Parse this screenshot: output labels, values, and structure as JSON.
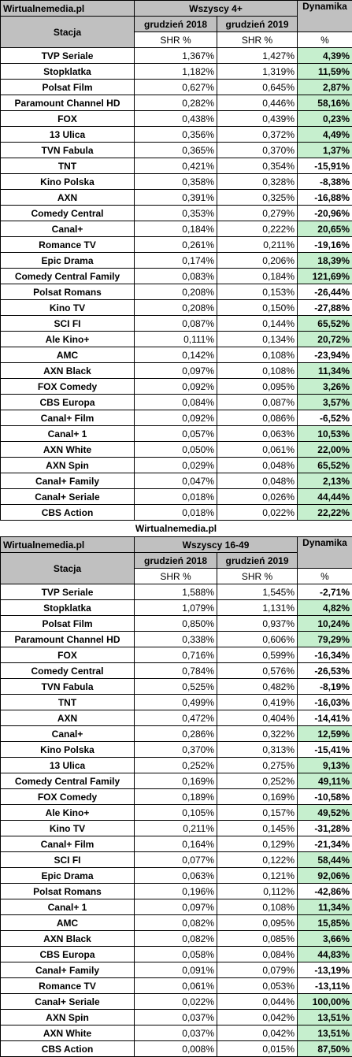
{
  "table1": {
    "source": "Wirtualnemedia.pl",
    "group": "Wszyscy 4+",
    "station_header": "Stacja",
    "month1": "grudzień 2018",
    "month2": "grudzień 2019",
    "dynamic_header": "Dynamika",
    "unit_shr": "SHR %",
    "unit_pct": "%",
    "rows": [
      {
        "station": "TVP Seriale",
        "v2018": "1,367%",
        "v2019": "1,427%",
        "dyn": "4,39%"
      },
      {
        "station": "Stopklatka",
        "v2018": "1,182%",
        "v2019": "1,319%",
        "dyn": "11,59%"
      },
      {
        "station": "Polsat Film",
        "v2018": "0,627%",
        "v2019": "0,645%",
        "dyn": "2,87%"
      },
      {
        "station": "Paramount Channel HD",
        "v2018": "0,282%",
        "v2019": "0,446%",
        "dyn": "58,16%"
      },
      {
        "station": "FOX",
        "v2018": "0,438%",
        "v2019": "0,439%",
        "dyn": "0,23%"
      },
      {
        "station": "13 Ulica",
        "v2018": "0,356%",
        "v2019": "0,372%",
        "dyn": "4,49%"
      },
      {
        "station": "TVN Fabula",
        "v2018": "0,365%",
        "v2019": "0,370%",
        "dyn": "1,37%"
      },
      {
        "station": "TNT",
        "v2018": "0,421%",
        "v2019": "0,354%",
        "dyn": "-15,91%"
      },
      {
        "station": "Kino Polska",
        "v2018": "0,358%",
        "v2019": "0,328%",
        "dyn": "-8,38%"
      },
      {
        "station": "AXN",
        "v2018": "0,391%",
        "v2019": "0,325%",
        "dyn": "-16,88%"
      },
      {
        "station": "Comedy Central",
        "v2018": "0,353%",
        "v2019": "0,279%",
        "dyn": "-20,96%"
      },
      {
        "station": "Canal+",
        "v2018": "0,184%",
        "v2019": "0,222%",
        "dyn": "20,65%"
      },
      {
        "station": "Romance TV",
        "v2018": "0,261%",
        "v2019": "0,211%",
        "dyn": "-19,16%"
      },
      {
        "station": "Epic Drama",
        "v2018": "0,174%",
        "v2019": "0,206%",
        "dyn": "18,39%"
      },
      {
        "station": "Comedy Central Family",
        "v2018": "0,083%",
        "v2019": "0,184%",
        "dyn": "121,69%"
      },
      {
        "station": "Polsat Romans",
        "v2018": "0,208%",
        "v2019": "0,153%",
        "dyn": "-26,44%"
      },
      {
        "station": "Kino TV",
        "v2018": "0,208%",
        "v2019": "0,150%",
        "dyn": "-27,88%"
      },
      {
        "station": "SCI FI",
        "v2018": "0,087%",
        "v2019": "0,144%",
        "dyn": "65,52%"
      },
      {
        "station": "Ale Kino+",
        "v2018": "0,111%",
        "v2019": "0,134%",
        "dyn": "20,72%"
      },
      {
        "station": "AMC",
        "v2018": "0,142%",
        "v2019": "0,108%",
        "dyn": "-23,94%"
      },
      {
        "station": "AXN Black",
        "v2018": "0,097%",
        "v2019": "0,108%",
        "dyn": "11,34%"
      },
      {
        "station": "FOX Comedy",
        "v2018": "0,092%",
        "v2019": "0,095%",
        "dyn": "3,26%"
      },
      {
        "station": "CBS Europa",
        "v2018": "0,084%",
        "v2019": "0,087%",
        "dyn": "3,57%"
      },
      {
        "station": "Canal+ Film",
        "v2018": "0,092%",
        "v2019": "0,086%",
        "dyn": "-6,52%"
      },
      {
        "station": "Canal+ 1",
        "v2018": "0,057%",
        "v2019": "0,063%",
        "dyn": "10,53%"
      },
      {
        "station": "AXN White",
        "v2018": "0,050%",
        "v2019": "0,061%",
        "dyn": "22,00%"
      },
      {
        "station": "AXN Spin",
        "v2018": "0,029%",
        "v2019": "0,048%",
        "dyn": "65,52%"
      },
      {
        "station": "Canal+ Family",
        "v2018": "0,047%",
        "v2019": "0,048%",
        "dyn": "2,13%"
      },
      {
        "station": "Canal+ Seriale",
        "v2018": "0,018%",
        "v2019": "0,026%",
        "dyn": "44,44%"
      },
      {
        "station": "CBS Action",
        "v2018": "0,018%",
        "v2019": "0,022%",
        "dyn": "22,22%"
      }
    ]
  },
  "separator": "Wirtualnemedia.pl",
  "table2": {
    "source": "Wirtualnemedia.pl",
    "group": "Wszyscy 16-49",
    "station_header": "Stacja",
    "month1": "grudzień 2018",
    "month2": "grudzień 2019",
    "dynamic_header": "Dynamika",
    "unit_shr": "SHR %",
    "unit_pct": "%",
    "rows": [
      {
        "station": "TVP Seriale",
        "v2018": "1,588%",
        "v2019": "1,545%",
        "dyn": "-2,71%"
      },
      {
        "station": "Stopklatka",
        "v2018": "1,079%",
        "v2019": "1,131%",
        "dyn": "4,82%"
      },
      {
        "station": "Polsat Film",
        "v2018": "0,850%",
        "v2019": "0,937%",
        "dyn": "10,24%"
      },
      {
        "station": "Paramount Channel HD",
        "v2018": "0,338%",
        "v2019": "0,606%",
        "dyn": "79,29%"
      },
      {
        "station": "FOX",
        "v2018": "0,716%",
        "v2019": "0,599%",
        "dyn": "-16,34%"
      },
      {
        "station": "Comedy Central",
        "v2018": "0,784%",
        "v2019": "0,576%",
        "dyn": "-26,53%"
      },
      {
        "station": "TVN Fabula",
        "v2018": "0,525%",
        "v2019": "0,482%",
        "dyn": "-8,19%"
      },
      {
        "station": "TNT",
        "v2018": "0,499%",
        "v2019": "0,419%",
        "dyn": "-16,03%"
      },
      {
        "station": "AXN",
        "v2018": "0,472%",
        "v2019": "0,404%",
        "dyn": "-14,41%"
      },
      {
        "station": "Canal+",
        "v2018": "0,286%",
        "v2019": "0,322%",
        "dyn": "12,59%"
      },
      {
        "station": "Kino Polska",
        "v2018": "0,370%",
        "v2019": "0,313%",
        "dyn": "-15,41%"
      },
      {
        "station": "13 Ulica",
        "v2018": "0,252%",
        "v2019": "0,275%",
        "dyn": "9,13%"
      },
      {
        "station": "Comedy Central Family",
        "v2018": "0,169%",
        "v2019": "0,252%",
        "dyn": "49,11%"
      },
      {
        "station": "FOX Comedy",
        "v2018": "0,189%",
        "v2019": "0,169%",
        "dyn": "-10,58%"
      },
      {
        "station": "Ale Kino+",
        "v2018": "0,105%",
        "v2019": "0,157%",
        "dyn": "49,52%"
      },
      {
        "station": "Kino TV",
        "v2018": "0,211%",
        "v2019": "0,145%",
        "dyn": "-31,28%"
      },
      {
        "station": "Canal+ Film",
        "v2018": "0,164%",
        "v2019": "0,129%",
        "dyn": "-21,34%"
      },
      {
        "station": "SCI FI",
        "v2018": "0,077%",
        "v2019": "0,122%",
        "dyn": "58,44%"
      },
      {
        "station": "Epic Drama",
        "v2018": "0,063%",
        "v2019": "0,121%",
        "dyn": "92,06%"
      },
      {
        "station": "Polsat Romans",
        "v2018": "0,196%",
        "v2019": "0,112%",
        "dyn": "-42,86%"
      },
      {
        "station": "Canal+ 1",
        "v2018": "0,097%",
        "v2019": "0,108%",
        "dyn": "11,34%"
      },
      {
        "station": "AMC",
        "v2018": "0,082%",
        "v2019": "0,095%",
        "dyn": "15,85%"
      },
      {
        "station": "AXN Black",
        "v2018": "0,082%",
        "v2019": "0,085%",
        "dyn": "3,66%"
      },
      {
        "station": "CBS Europa",
        "v2018": "0,058%",
        "v2019": "0,084%",
        "dyn": "44,83%"
      },
      {
        "station": "Canal+ Family",
        "v2018": "0,091%",
        "v2019": "0,079%",
        "dyn": "-13,19%"
      },
      {
        "station": "Romance TV",
        "v2018": "0,061%",
        "v2019": "0,053%",
        "dyn": "-13,11%"
      },
      {
        "station": "Canal+ Seriale",
        "v2018": "0,022%",
        "v2019": "0,044%",
        "dyn": "100,00%"
      },
      {
        "station": "AXN Spin",
        "v2018": "0,037%",
        "v2019": "0,042%",
        "dyn": "13,51%"
      },
      {
        "station": "AXN White",
        "v2018": "0,037%",
        "v2019": "0,042%",
        "dyn": "13,51%"
      },
      {
        "station": "CBS Action",
        "v2018": "0,008%",
        "v2019": "0,015%",
        "dyn": "87,50%"
      }
    ]
  },
  "colors": {
    "header_bg": "#c0c0c0",
    "positive_bg": "#c6efce",
    "border": "#000000"
  }
}
